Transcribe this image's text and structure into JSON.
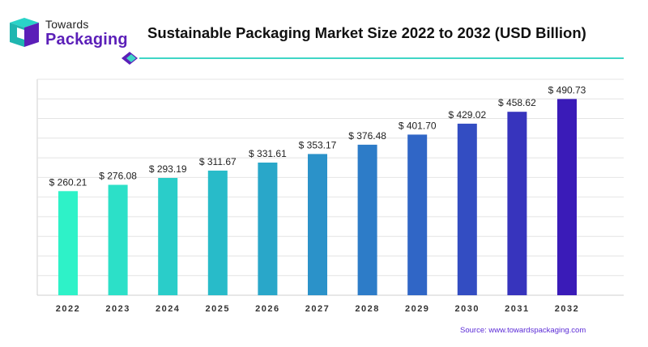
{
  "brand": {
    "line1": "Towards",
    "line2": "Packaging"
  },
  "source": "Source: www.towardspackaging.com",
  "colors": {
    "bar_start": "#2ef2c8",
    "bar_end": "#3a1bb8",
    "accent_line": "#3fd6c6",
    "brand_purple": "#5b1fb8"
  },
  "chart_data": {
    "type": "bar",
    "title": "Sustainable Packaging Market Size 2022 to 2032 (USD Billion)",
    "xlabel": "",
    "ylabel": "",
    "categories": [
      "2022",
      "2023",
      "2024",
      "2025",
      "2026",
      "2027",
      "2028",
      "2029",
      "2030",
      "2031",
      "2032"
    ],
    "values": [
      260.21,
      276.08,
      293.19,
      311.67,
      331.61,
      353.17,
      376.48,
      401.7,
      429.02,
      458.62,
      490.73
    ],
    "data_labels": [
      "$ 260.21",
      "$ 276.08",
      "$ 293.19",
      "$ 311.67",
      "$ 331.61",
      "$ 353.17",
      "$ 376.48",
      "$ 401.70",
      "$ 429.02",
      "$ 458.62",
      "$ 490.73"
    ],
    "ylim": [
      0,
      540
    ],
    "grid": true,
    "legend": "none"
  }
}
